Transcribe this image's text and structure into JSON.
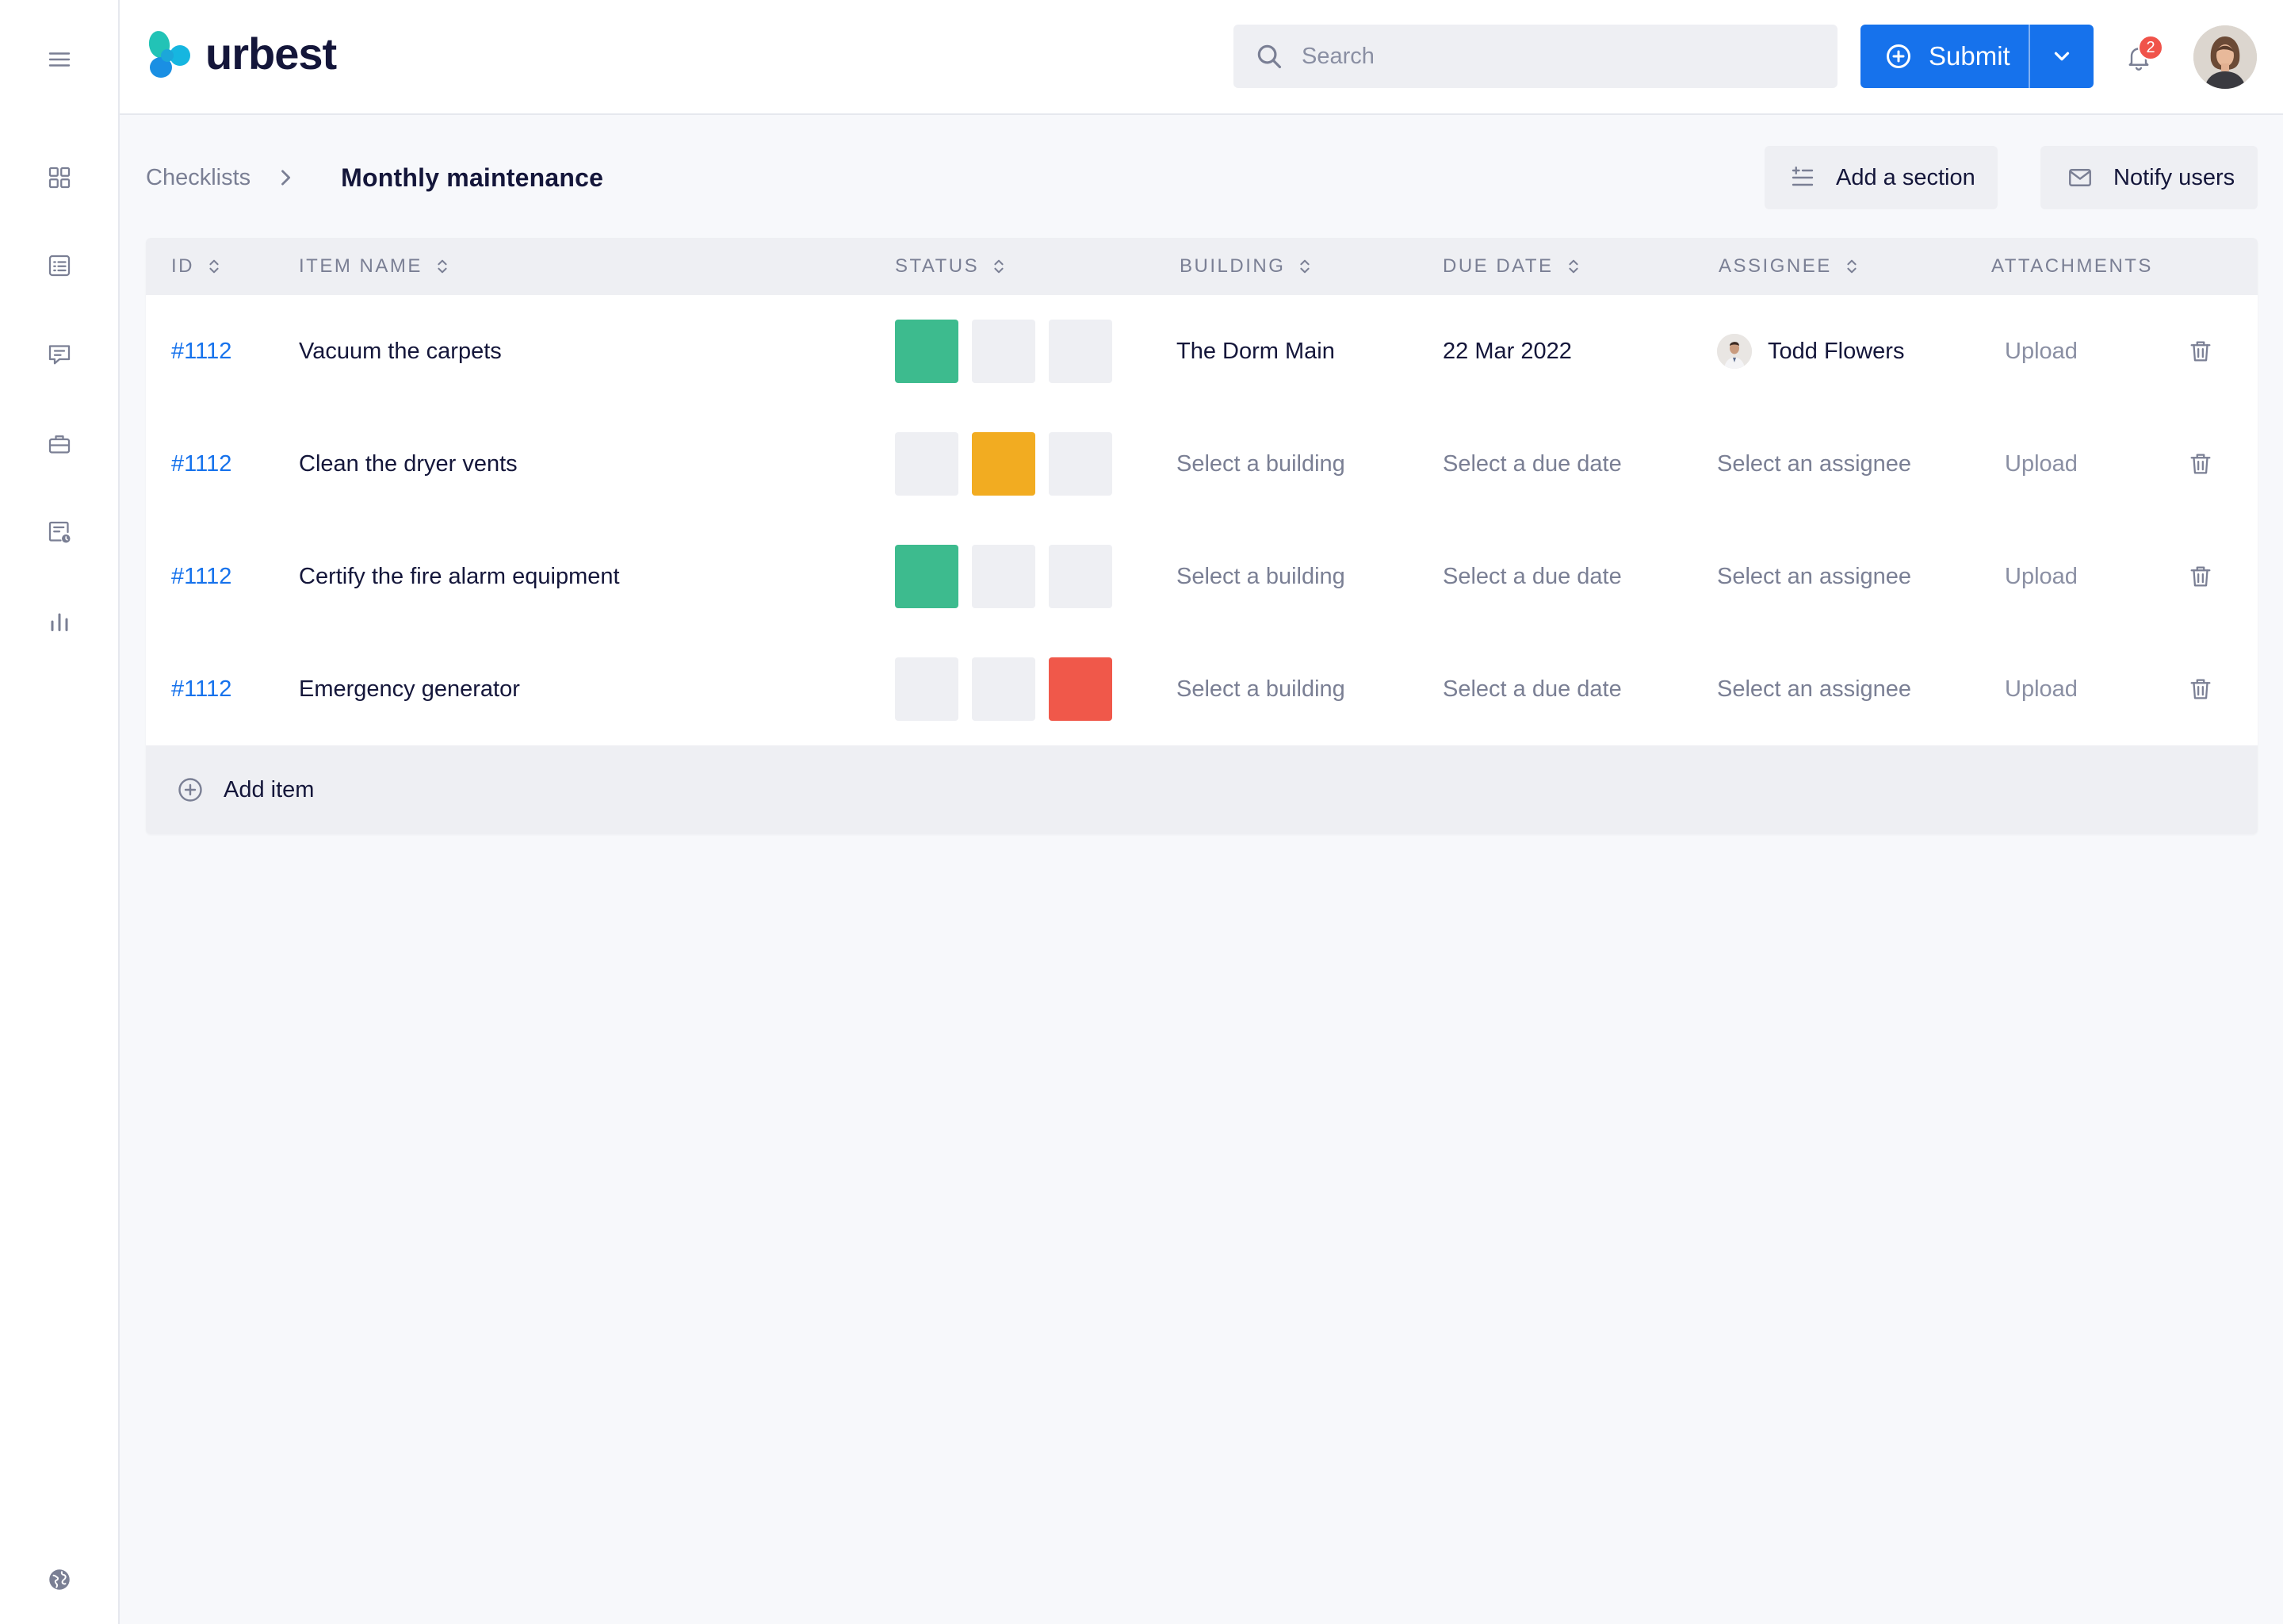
{
  "app": {
    "brand": "urbest"
  },
  "header": {
    "search_placeholder": "Search",
    "submit_label": "Submit",
    "notification_count": "2"
  },
  "sidebar": {
    "items": [
      {
        "icon": "menu-icon"
      },
      {
        "icon": "dashboard-icon"
      },
      {
        "icon": "checklist-icon"
      },
      {
        "icon": "messages-icon"
      },
      {
        "icon": "briefcase-icon"
      },
      {
        "icon": "schedule-icon"
      },
      {
        "icon": "analytics-icon"
      },
      {
        "icon": "globe-icon"
      }
    ]
  },
  "breadcrumb": {
    "parent": "Checklists",
    "current": "Monthly maintenance"
  },
  "toolbar": {
    "add_section": "Add a section",
    "notify_users": "Notify users"
  },
  "table": {
    "columns": {
      "id": "ID",
      "item_name": "ITEM NAME",
      "status": "STATUS",
      "building": "BUILDING",
      "due_date": "DUE DATE",
      "assignee": "ASSIGNEE",
      "attachments": "ATTACHMENTS"
    },
    "rows": [
      {
        "id": "#1112",
        "name": "Vacuum the carpets",
        "status_active": 0,
        "building": "The Dorm Main",
        "due_date": "22 Mar 2022",
        "assignee": "Todd Flowers",
        "upload": "Upload"
      },
      {
        "id": "#1112",
        "name": "Clean the dryer vents",
        "status_active": 1,
        "building": "Select a building",
        "due_date": "Select a due date",
        "assignee": "Select an assignee",
        "upload": "Upload"
      },
      {
        "id": "#1112",
        "name": "Certify the fire alarm equipment",
        "status_active": 0,
        "building": "Select a building",
        "due_date": "Select a due date",
        "assignee": "Select an assignee",
        "upload": "Upload"
      },
      {
        "id": "#1112",
        "name": "Emergency generator",
        "status_active": 2,
        "building": "Select a building",
        "due_date": "Select a due date",
        "assignee": "Select an assignee",
        "upload": "Upload"
      }
    ],
    "add_item": "Add item"
  },
  "colors": {
    "accent": "#1672EC",
    "status_done": "#3DBB8E",
    "status_in_progress": "#F2AC21",
    "status_blocked": "#F0584A",
    "status_empty": "#EEEFF3",
    "badge": "#F0534A"
  }
}
